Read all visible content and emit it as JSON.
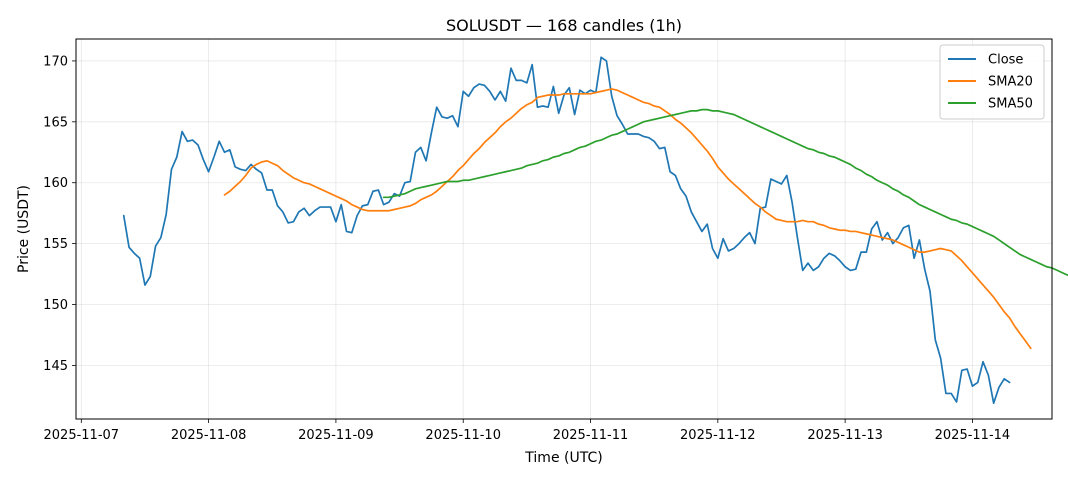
{
  "chart_data": {
    "type": "line",
    "title": "SOLUSDT — 168 candles (1h)",
    "xlabel": "Time (UTC)",
    "ylabel": "Price (USDT)",
    "grid": true,
    "legend_position": "top-right",
    "x_tick_labels": [
      "2025-11-07",
      "2025-11-08",
      "2025-11-09",
      "2025-11-10",
      "2025-11-11",
      "2025-11-12",
      "2025-11-13",
      "2025-11-14"
    ],
    "y_ticks": [
      145,
      150,
      155,
      160,
      165,
      170
    ],
    "ylim": [
      140.6,
      171.8
    ],
    "xlim": [
      "2025-11-06T23:00",
      "2025-11-14T15:00"
    ],
    "series": [
      {
        "name": "Close",
        "color": "#1f77b4",
        "x": [
          "2025-11-07T08:00",
          "2025-11-07T09:00",
          "2025-11-07T10:00",
          "2025-11-07T11:00",
          "2025-11-07T12:00",
          "2025-11-07T13:00",
          "2025-11-07T14:00",
          "2025-11-07T15:00",
          "2025-11-07T16:00",
          "2025-11-07T17:00",
          "2025-11-07T18:00",
          "2025-11-07T19:00",
          "2025-11-07T20:00",
          "2025-11-07T21:00",
          "2025-11-07T22:00",
          "2025-11-07T23:00",
          "2025-11-08T00:00",
          "2025-11-08T01:00",
          "2025-11-08T02:00",
          "2025-11-08T03:00",
          "2025-11-08T04:00",
          "2025-11-08T05:00",
          "2025-11-08T06:00",
          "2025-11-08T07:00",
          "2025-11-08T08:00",
          "2025-11-08T09:00",
          "2025-11-08T10:00",
          "2025-11-08T11:00",
          "2025-11-08T12:00",
          "2025-11-08T13:00",
          "2025-11-08T14:00",
          "2025-11-08T15:00",
          "2025-11-08T16:00",
          "2025-11-08T17:00",
          "2025-11-08T18:00",
          "2025-11-08T19:00",
          "2025-11-08T20:00",
          "2025-11-08T21:00",
          "2025-11-08T22:00",
          "2025-11-08T23:00",
          "2025-11-09T00:00",
          "2025-11-09T01:00",
          "2025-11-09T02:00",
          "2025-11-09T03:00",
          "2025-11-09T04:00",
          "2025-11-09T05:00",
          "2025-11-09T06:00",
          "2025-11-09T07:00",
          "2025-11-09T08:00",
          "2025-11-09T09:00",
          "2025-11-09T10:00",
          "2025-11-09T11:00",
          "2025-11-09T12:00",
          "2025-11-09T13:00",
          "2025-11-09T14:00",
          "2025-11-09T15:00",
          "2025-11-09T16:00",
          "2025-11-09T17:00",
          "2025-11-09T18:00",
          "2025-11-09T19:00",
          "2025-11-09T20:00",
          "2025-11-09T21:00",
          "2025-11-09T22:00",
          "2025-11-09T23:00",
          "2025-11-10T00:00",
          "2025-11-10T01:00",
          "2025-11-10T02:00",
          "2025-11-10T03:00",
          "2025-11-10T04:00",
          "2025-11-10T05:00",
          "2025-11-10T06:00",
          "2025-11-10T07:00",
          "2025-11-10T08:00",
          "2025-11-10T09:00",
          "2025-11-10T10:00",
          "2025-11-10T11:00",
          "2025-11-10T12:00",
          "2025-11-10T13:00",
          "2025-11-10T14:00",
          "2025-11-10T15:00",
          "2025-11-10T16:00",
          "2025-11-10T17:00",
          "2025-11-10T18:00",
          "2025-11-10T19:00",
          "2025-11-10T20:00",
          "2025-11-10T21:00",
          "2025-11-10T22:00",
          "2025-11-10T23:00",
          "2025-11-11T00:00",
          "2025-11-11T01:00",
          "2025-11-11T02:00",
          "2025-11-11T03:00",
          "2025-11-11T04:00",
          "2025-11-11T05:00",
          "2025-11-11T06:00",
          "2025-11-11T07:00",
          "2025-11-11T08:00",
          "2025-11-11T09:00",
          "2025-11-11T10:00",
          "2025-11-11T11:00",
          "2025-11-11T12:00",
          "2025-11-11T13:00",
          "2025-11-11T14:00",
          "2025-11-11T15:00",
          "2025-11-11T16:00",
          "2025-11-11T17:00",
          "2025-11-11T18:00",
          "2025-11-11T19:00",
          "2025-11-11T20:00",
          "2025-11-11T21:00",
          "2025-11-11T22:00",
          "2025-11-11T23:00",
          "2025-11-12T00:00",
          "2025-11-12T01:00",
          "2025-11-12T02:00",
          "2025-11-12T03:00",
          "2025-11-12T04:00",
          "2025-11-12T05:00",
          "2025-11-12T06:00",
          "2025-11-12T07:00",
          "2025-11-12T08:00",
          "2025-11-12T09:00",
          "2025-11-12T10:00",
          "2025-11-12T11:00",
          "2025-11-12T12:00",
          "2025-11-12T13:00",
          "2025-11-12T14:00",
          "2025-11-12T15:00",
          "2025-11-12T16:00",
          "2025-11-12T17:00",
          "2025-11-12T18:00",
          "2025-11-12T19:00",
          "2025-11-12T20:00",
          "2025-11-12T21:00",
          "2025-11-12T22:00",
          "2025-11-12T23:00",
          "2025-11-13T00:00",
          "2025-11-13T01:00",
          "2025-11-13T02:00",
          "2025-11-13T03:00",
          "2025-11-13T04:00",
          "2025-11-13T05:00",
          "2025-11-13T06:00",
          "2025-11-13T07:00",
          "2025-11-13T08:00",
          "2025-11-13T09:00",
          "2025-11-13T10:00",
          "2025-11-13T11:00",
          "2025-11-13T12:00",
          "2025-11-13T13:00",
          "2025-11-13T14:00",
          "2025-11-13T15:00",
          "2025-11-13T16:00",
          "2025-11-13T17:00",
          "2025-11-13T18:00",
          "2025-11-13T19:00",
          "2025-11-13T20:00",
          "2025-11-13T21:00",
          "2025-11-13T22:00",
          "2025-11-13T23:00",
          "2025-11-14T00:00",
          "2025-11-14T01:00",
          "2025-11-14T02:00",
          "2025-11-14T03:00",
          "2025-11-14T04:00",
          "2025-11-14T05:00",
          "2025-11-14T06:00",
          "2025-11-14T07:00"
        ],
        "values": [
          157.3,
          154.7,
          154.2,
          153.8,
          151.6,
          152.3,
          154.8,
          155.5,
          157.4,
          161.1,
          162.1,
          164.2,
          163.4,
          163.5,
          163.1,
          161.9,
          160.9,
          162.1,
          163.4,
          162.5,
          162.7,
          161.3,
          161.1,
          161.0,
          161.5,
          161.1,
          160.8,
          159.4,
          159.4,
          158.1,
          157.6,
          156.7,
          156.8,
          157.6,
          157.9,
          157.3,
          157.7,
          158.0,
          158.0,
          158.0,
          156.8,
          158.2,
          156.0,
          155.9,
          157.3,
          158.1,
          158.2,
          159.3,
          159.4,
          158.2,
          158.4,
          159.1,
          158.9,
          160.0,
          160.1,
          162.5,
          162.9,
          161.8,
          164.1,
          166.2,
          165.4,
          165.3,
          165.5,
          164.6,
          167.5,
          167.1,
          167.8,
          168.1,
          168.0,
          167.5,
          166.8,
          167.5,
          166.7,
          169.4,
          168.4,
          168.4,
          168.2,
          169.7,
          166.2,
          166.3,
          166.2,
          167.9,
          165.7,
          167.2,
          167.8,
          165.6,
          167.6,
          167.3,
          167.6,
          167.4,
          170.3,
          170.0,
          167.1,
          165.5,
          164.8,
          164.0,
          164.0,
          164.0,
          163.8,
          163.7,
          163.4,
          162.8,
          162.9,
          160.9,
          160.6,
          159.5,
          158.9,
          157.6,
          156.8,
          156.0,
          156.6,
          154.6,
          153.8,
          155.4,
          154.4,
          154.6,
          155.0,
          155.5,
          155.9,
          155.0,
          157.9,
          158.0,
          160.3,
          160.1,
          159.9,
          160.6,
          158.4,
          155.5,
          152.8,
          153.4,
          152.8,
          153.1,
          153.8,
          154.2,
          154.0,
          153.6,
          153.1,
          152.8,
          152.9,
          154.3,
          154.3,
          156.2,
          156.8,
          155.3,
          155.9,
          155.0,
          155.5,
          156.3,
          156.5,
          153.8,
          155.3,
          152.9,
          151.1,
          147.1,
          145.6,
          142.7,
          142.7,
          142.0,
          144.6,
          144.7,
          143.3,
          143.6,
          145.3,
          144.2,
          141.9,
          143.2,
          143.9,
          143.6
        ]
      },
      {
        "name": "SMA20",
        "color": "#ff7f0e",
        "x_start": "2025-11-08T03:00",
        "values": [
          159.0,
          159.3,
          159.7,
          160.1,
          160.6,
          161.2,
          161.5,
          161.7,
          161.8,
          161.6,
          161.4,
          161.0,
          160.7,
          160.4,
          160.2,
          160.0,
          159.9,
          159.7,
          159.5,
          159.3,
          159.1,
          158.9,
          158.7,
          158.5,
          158.2,
          158.0,
          157.8,
          157.7,
          157.7,
          157.7,
          157.7,
          157.7,
          157.8,
          157.9,
          158.0,
          158.1,
          158.3,
          158.6,
          158.8,
          159.0,
          159.3,
          159.7,
          160.1,
          160.5,
          161.0,
          161.4,
          161.9,
          162.4,
          162.8,
          163.3,
          163.7,
          164.1,
          164.6,
          165.0,
          165.3,
          165.7,
          166.1,
          166.4,
          166.6,
          167.0,
          167.1,
          167.2,
          167.2,
          167.2,
          167.3,
          167.3,
          167.3,
          167.3,
          167.3,
          167.3,
          167.4,
          167.5,
          167.6,
          167.7,
          167.6,
          167.4,
          167.2,
          167.0,
          166.8,
          166.6,
          166.5,
          166.3,
          166.2,
          165.9,
          165.6,
          165.2,
          164.9,
          164.5,
          164.1,
          163.6,
          163.1,
          162.6,
          162.0,
          161.3,
          160.8,
          160.3,
          159.9,
          159.5,
          159.1,
          158.7,
          158.3,
          158.0,
          157.6,
          157.3,
          157.0,
          156.9,
          156.8,
          156.8,
          156.8,
          156.9,
          156.8,
          156.8,
          156.6,
          156.5,
          156.3,
          156.2,
          156.1,
          156.1,
          156.0,
          156.0,
          155.9,
          155.8,
          155.7,
          155.6,
          155.5,
          155.4,
          155.3,
          155.1,
          154.9,
          154.7,
          154.5,
          154.3,
          154.3,
          154.4,
          154.5,
          154.6,
          154.5,
          154.4,
          154.0,
          153.6,
          153.1,
          152.6,
          152.1,
          151.6,
          151.1,
          150.6,
          150.0,
          149.4,
          148.9,
          148.2,
          147.6,
          147.0,
          146.4
        ]
      },
      {
        "name": "SMA50",
        "color": "#2ca02c",
        "x_start": "2025-11-09T09:00",
        "values": [
          158.8,
          158.8,
          158.9,
          159.0,
          159.1,
          159.3,
          159.5,
          159.6,
          159.7,
          159.8,
          159.9,
          160.0,
          160.1,
          160.1,
          160.1,
          160.2,
          160.2,
          160.3,
          160.4,
          160.5,
          160.6,
          160.7,
          160.8,
          160.9,
          161.0,
          161.1,
          161.2,
          161.4,
          161.5,
          161.6,
          161.8,
          161.9,
          162.1,
          162.2,
          162.4,
          162.5,
          162.7,
          162.9,
          163.0,
          163.2,
          163.4,
          163.5,
          163.7,
          163.9,
          164.0,
          164.2,
          164.4,
          164.6,
          164.8,
          165.0,
          165.1,
          165.2,
          165.3,
          165.4,
          165.5,
          165.6,
          165.7,
          165.8,
          165.9,
          165.9,
          166.0,
          166.0,
          165.9,
          165.9,
          165.8,
          165.7,
          165.6,
          165.4,
          165.2,
          165.0,
          164.8,
          164.6,
          164.4,
          164.2,
          164.0,
          163.8,
          163.6,
          163.4,
          163.2,
          163.0,
          162.8,
          162.7,
          162.5,
          162.4,
          162.2,
          162.1,
          161.9,
          161.7,
          161.5,
          161.2,
          161.0,
          160.7,
          160.5,
          160.2,
          160.0,
          159.8,
          159.5,
          159.3,
          159.0,
          158.8,
          158.5,
          158.2,
          158.0,
          157.8,
          157.6,
          157.4,
          157.2,
          157.0,
          156.9,
          156.7,
          156.6,
          156.4,
          156.2,
          156.0,
          155.8,
          155.6,
          155.3,
          155.0,
          154.7,
          154.4,
          154.1,
          153.9,
          153.7,
          153.5,
          153.3,
          153.1,
          153.0,
          152.8,
          152.6,
          152.4,
          152.2,
          152.0,
          151.9
        ]
      }
    ]
  }
}
